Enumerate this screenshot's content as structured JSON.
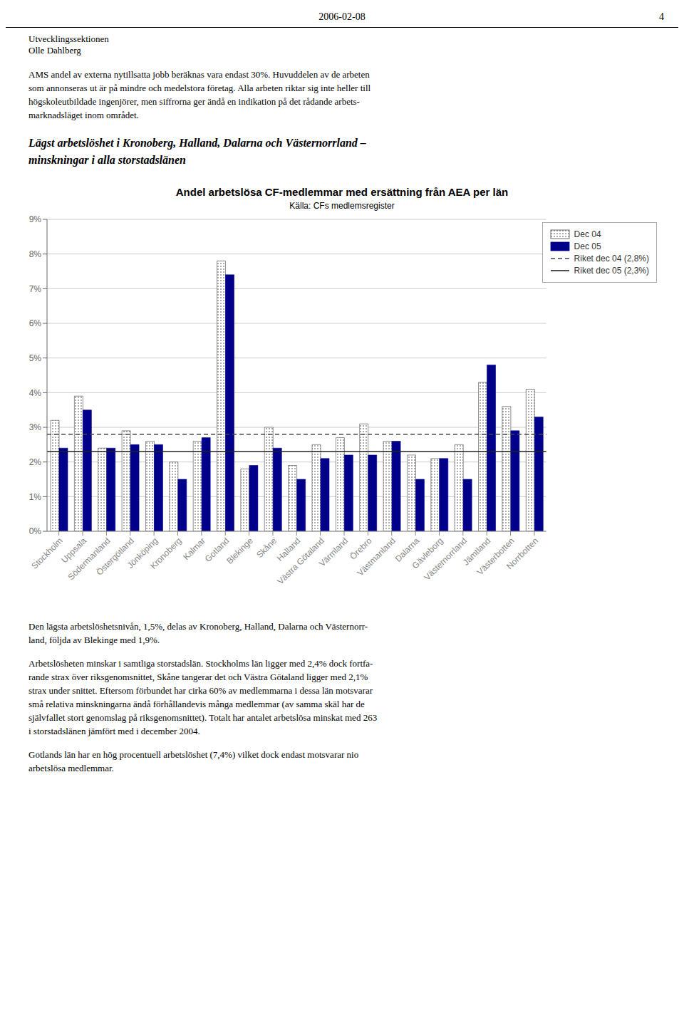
{
  "page": {
    "header_date": "2006-02-08",
    "header_page": "4",
    "header_lines": [
      "Utvecklingssektionen",
      "Olle Dahlberg"
    ],
    "para1": [
      "AMS andel av externa nytillsatta jobb beräknas vara endast 30%. Huvuddelen av de arbeten",
      "som annonseras ut är på mindre och medelstora företag. Alla arbeten riktar sig inte heller till",
      "högskoleutbildade ingenjörer, men siffrorna ger ändå en indikation på det rådande arbets-",
      "marknadsläget inom området."
    ],
    "heading": [
      "Lägst arbetslöshet i Kronoberg, Halland, Dalarna och Västernorrland –",
      "minskningar i alla storstadslänen"
    ],
    "para2": [
      "Den lägsta arbetslöshetsnivån, 1,5%, delas av Kronoberg, Halland, Dalarna och Västernorr-",
      "land, följda av Blekinge med 1,9%."
    ],
    "para3": [
      "Arbetslösheten minskar i samtliga storstadslän. Stockholms län ligger med 2,4% dock fortfa-",
      "rande strax över riksgenomsnittet, Skåne tangerar det och Västra Götaland ligger med 2,1%",
      "strax under snittet. Eftersom förbundet har cirka 60% av medlemmarna i dessa län motsvarar",
      "små relativa minskningarna ändå förhållandevis många medlemmar (av samma skäl har de",
      "självfallet stort genomslag på riksgenomsnittet). Totalt har antalet arbetslösa minskat med 263",
      "i storstadslänen jämfört med i december 2004."
    ],
    "para4": [
      "Gotlands län har en hög procentuell arbetslöshet (7,4%) vilket dock endast motsvarar nio",
      "arbetslösa medlemmar."
    ]
  },
  "chart_data": {
    "type": "bar",
    "title": "Andel arbetslösa CF-medlemmar med ersättning från AEA per län",
    "subtitle": "Källa: CFs medlemsregister",
    "categories": [
      "Stockholm",
      "Uppsala",
      "Södermanland",
      "Östergötland",
      "Jönköping",
      "Kronoberg",
      "Kalmar",
      "Gotland",
      "Blekinge",
      "Skåne",
      "Halland",
      "Västra Götaland",
      "Värmland",
      "Örebro",
      "Västmanland",
      "Dalarna",
      "Gävleborg",
      "Västernorrland",
      "Jämtland",
      "Västerbotten",
      "Norrbotten"
    ],
    "series": [
      {
        "name": "Dec 04",
        "color": "#444444",
        "values": [
          3.2,
          3.9,
          2.4,
          2.9,
          2.6,
          2.0,
          2.6,
          7.8,
          1.8,
          3.0,
          1.9,
          2.5,
          2.7,
          3.1,
          2.6,
          2.2,
          2.1,
          2.5,
          4.3,
          3.6,
          4.1
        ]
      },
      {
        "name": "Dec 05",
        "color": "#00008B",
        "values": [
          2.4,
          3.5,
          2.4,
          2.5,
          2.5,
          1.5,
          2.7,
          7.4,
          1.9,
          2.4,
          1.5,
          2.1,
          2.2,
          2.2,
          2.6,
          1.5,
          2.1,
          1.5,
          4.8,
          2.9,
          3.3
        ]
      }
    ],
    "reference_lines": [
      {
        "name": "Riket dec 04 (2,8%)",
        "value": 2.8,
        "color": "#444444",
        "line_style": "dashed"
      },
      {
        "name": "Riket dec 05 (2,3%)",
        "value": 2.3,
        "color": "#222222",
        "line_style": "solid"
      }
    ],
    "ylim": [
      0,
      9
    ],
    "yticks": [
      {
        "value": 0,
        "label": "0%"
      },
      {
        "value": 1,
        "label": "1%"
      },
      {
        "value": 2,
        "label": "2%"
      },
      {
        "value": 3,
        "label": "3%"
      },
      {
        "value": 4,
        "label": "4%"
      },
      {
        "value": 5,
        "label": "5%"
      },
      {
        "value": 6,
        "label": "6%"
      },
      {
        "value": 7,
        "label": "7%"
      },
      {
        "value": 8,
        "label": "8%"
      },
      {
        "value": 9,
        "label": "9%"
      }
    ],
    "grid": true,
    "legend": "upper right"
  }
}
